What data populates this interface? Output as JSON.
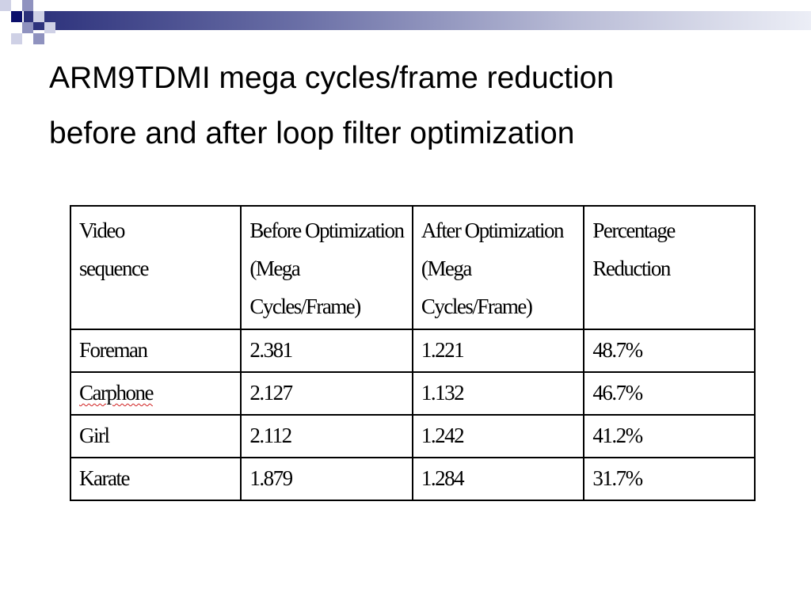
{
  "title": {
    "line1": "ARM9TDMI mega cycles/frame reduction",
    "line2": "before and after loop filter optimization"
  },
  "table": {
    "headers": [
      {
        "line1": "Video",
        "line2": "sequence",
        "line3": ""
      },
      {
        "line1": "Before Optimization",
        "line2": "(Mega",
        "line3": "Cycles/Frame)"
      },
      {
        "line1": "After Optimization",
        "line2": "(Mega",
        "line3": "Cycles/Frame)"
      },
      {
        "line1": "Percentage",
        "line2": "Reduction",
        "line3": ""
      }
    ],
    "rows": [
      {
        "sequence": "Foreman",
        "before": "2.381",
        "after": "1.221",
        "reduction": "48.7%"
      },
      {
        "sequence": "Carphone",
        "before": "2.127",
        "after": "1.132",
        "reduction": "46.7%"
      },
      {
        "sequence": "Girl",
        "before": "2.112",
        "after": "1.242",
        "reduction": "41.2%"
      },
      {
        "sequence": "Karate",
        "before": "1.879",
        "after": "1.284",
        "reduction": "31.7%"
      }
    ]
  },
  "colors": {
    "header_bar_dark": "#2a2f7a",
    "header_square_dark": "#0b0f6b",
    "spellcheck_underline": "#d02020"
  }
}
